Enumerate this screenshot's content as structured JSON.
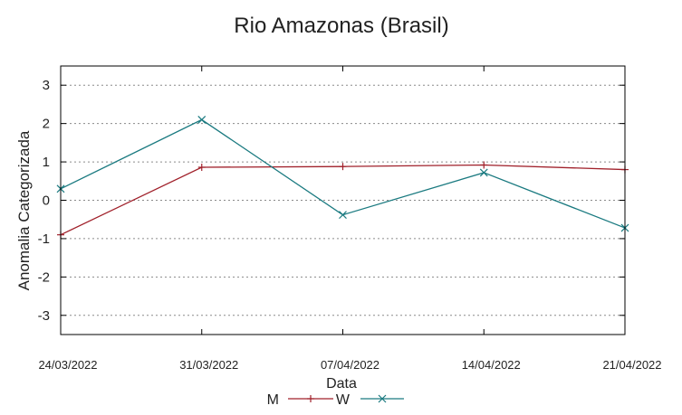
{
  "chart_data": {
    "type": "line",
    "title": "Rio Amazonas (Brasil)",
    "xlabel": "Data",
    "ylabel": "Anomalia Categorizada",
    "categories": [
      "24/03/2022",
      "31/03/2022",
      "07/04/2022",
      "14/04/2022",
      "21/04/2022"
    ],
    "ylim": [
      -3.5,
      3.5
    ],
    "yticks": [
      3,
      2,
      1,
      0,
      -1,
      -2,
      -3
    ],
    "ytick_labels": [
      "3",
      "2",
      "1",
      "0",
      "-1",
      "-2",
      "-3"
    ],
    "grid": true,
    "legend_position": "bottom-center",
    "series": [
      {
        "name": "M",
        "color": "#a0202a",
        "marker": "plus",
        "values": [
          -0.9,
          0.86,
          0.88,
          0.92,
          0.8
        ]
      },
      {
        "name": "W",
        "color": "#1a7a80",
        "marker": "cross",
        "values": [
          0.3,
          2.1,
          -0.38,
          0.72,
          -0.72
        ]
      }
    ]
  }
}
